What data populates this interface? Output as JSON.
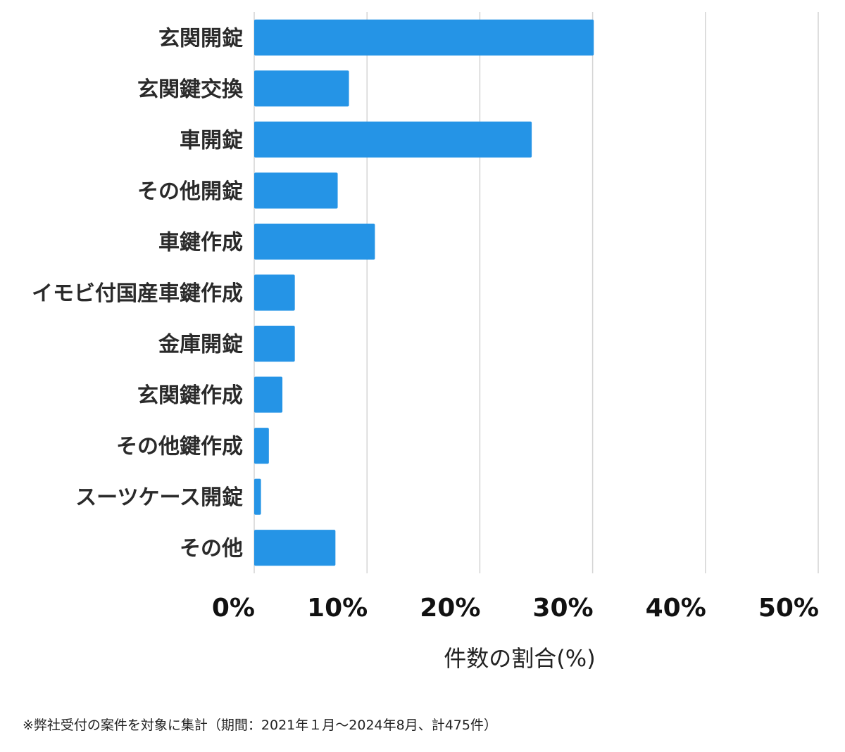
{
  "chart_data": {
    "type": "bar",
    "orientation": "horizontal",
    "categories": [
      "玄関開錠",
      "玄関鍵交換",
      "車開錠",
      "その他開錠",
      "車鍵作成",
      "イモビ付国産車鍵作成",
      "金庫開錠",
      "玄関鍵作成",
      "その他鍵作成",
      "スーツケース開錠",
      "その他"
    ],
    "values": [
      30.1,
      8.4,
      24.6,
      7.4,
      10.7,
      3.6,
      3.6,
      2.5,
      1.3,
      0.6,
      7.2
    ],
    "xlabel": "件数の割合(%)",
    "ylabel": "",
    "xlim": [
      0,
      50
    ],
    "xticks": [
      "0%",
      "10%",
      "20%",
      "30%",
      "40%",
      "50%"
    ],
    "grid": "vertical",
    "bar_color": "#2594e6",
    "grid_color": "#d4d4d4"
  },
  "footnote": "※弊社受付の案件を対象に集計（期間：2021年１月〜2024年8月、計475件）"
}
